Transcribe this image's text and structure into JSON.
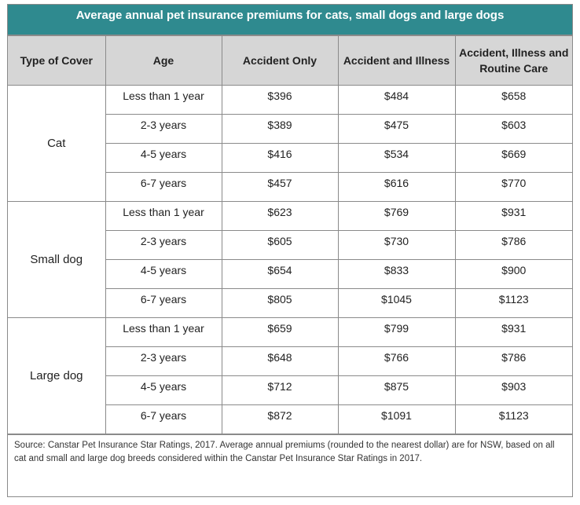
{
  "title": "Average annual pet insurance premiums for cats, small dogs and large dogs",
  "headers": [
    "Type of Cover",
    "Age",
    "Accident Only",
    "Accident and Illness",
    "Accident, Illness and Routine Care"
  ],
  "groups": [
    {
      "name": "Cat",
      "rows": [
        [
          "Less than 1 year",
          "$396",
          "$484",
          "$658"
        ],
        [
          "2-3 years",
          "$389",
          "$475",
          "$603"
        ],
        [
          "4-5 years",
          "$416",
          "$534",
          "$669"
        ],
        [
          "6-7 years",
          "$457",
          "$616",
          "$770"
        ]
      ]
    },
    {
      "name": "Small dog",
      "rows": [
        [
          "Less than 1 year",
          "$623",
          "$769",
          "$931"
        ],
        [
          "2-3 years",
          "$605",
          "$730",
          "$786"
        ],
        [
          "4-5 years",
          "$654",
          "$833",
          "$900"
        ],
        [
          "6-7 years",
          "$805",
          "$1045",
          "$1123"
        ]
      ]
    },
    {
      "name": "Large dog",
      "rows": [
        [
          "Less than 1 year",
          "$659",
          "$799",
          "$931"
        ],
        [
          "2-3 years",
          "$648",
          "$766",
          "$786"
        ],
        [
          "4-5 years",
          "$712",
          "$875",
          "$903"
        ],
        [
          "6-7 years",
          "$872",
          "$1091",
          "$1123"
        ]
      ]
    }
  ],
  "source": "Source: Canstar Pet Insurance Star Ratings, 2017. Average annual premiums (rounded to the nearest dollar) are for NSW, based on all cat and small and large dog breeds considered within the Canstar Pet Insurance Star Ratings in 2017."
}
